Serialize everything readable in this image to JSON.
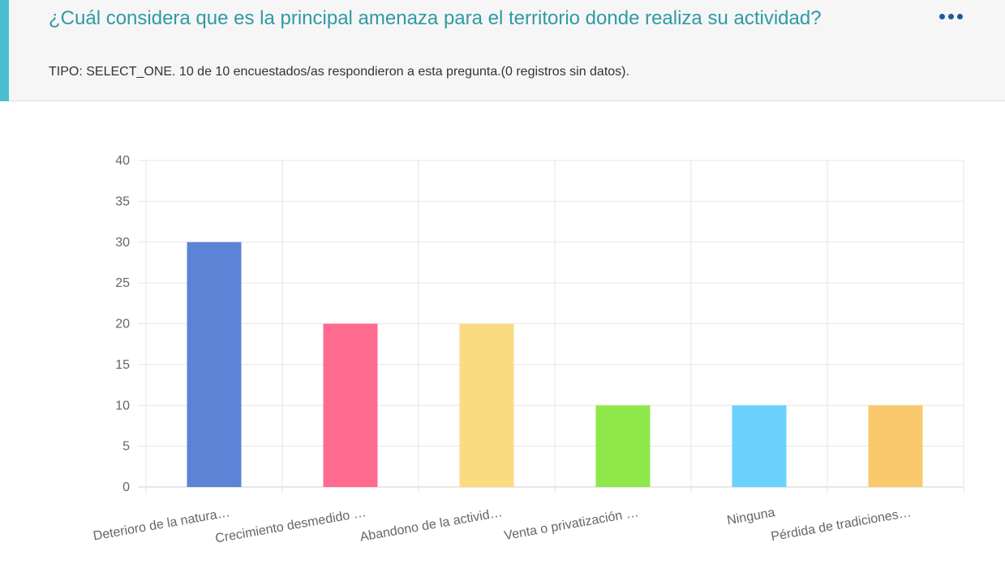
{
  "question": {
    "title": "¿Cuál considera que es la principal amenaza para el territorio donde realiza su actividad?",
    "subtitle": "TIPO: SELECT_ONE. 10 de 10 encuestados/as respondieron a esta pregunta.(0 registros sin datos).",
    "accent_color": "#4bbfcf",
    "menu_icon": "more-horizontal-icon"
  },
  "chart_data": {
    "type": "bar",
    "categories": [
      "Deterioro de la natura…",
      "Crecimiento desmedido …",
      "Abandono de la activid…",
      "Venta o privatización …",
      "Ninguna",
      "Pérdida de tradiciones…"
    ],
    "values": [
      30,
      20,
      20,
      10,
      10,
      10
    ],
    "colors": [
      "#5b83d6",
      "#ff6b8f",
      "#fadb81",
      "#8fe84a",
      "#6cd1fd",
      "#fbc96d"
    ],
    "ylim": [
      0,
      40
    ],
    "yticks": [
      0,
      5,
      10,
      15,
      20,
      25,
      30,
      35,
      40
    ],
    "grid": true
  }
}
